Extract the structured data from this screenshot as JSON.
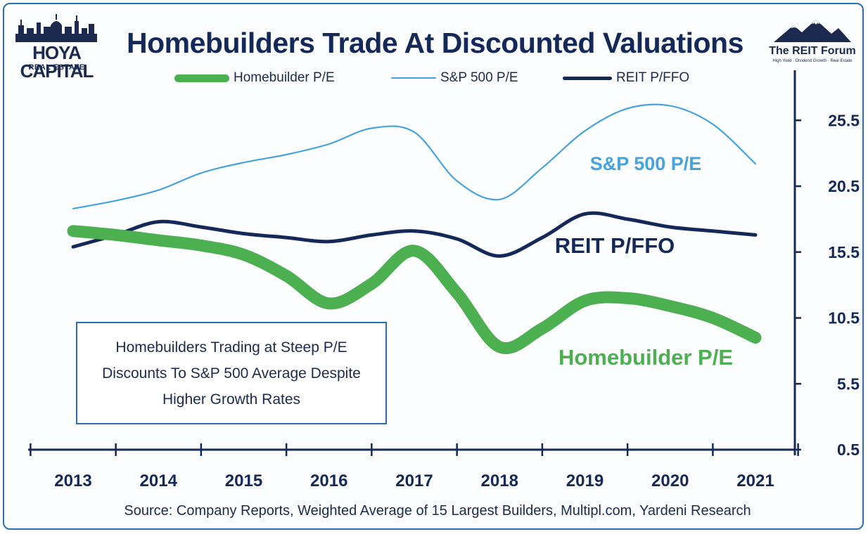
{
  "header": {
    "title": "Homebuilders Trade At Discounted Valuations",
    "logo_left_name": "HOYA CAPITAL",
    "logo_left_sub": "REAL ESTATE",
    "logo_right_name": "The REIT Forum",
    "logo_right_tagline": "High Yield · Dividend Growth · Real Estate"
  },
  "note": {
    "text": "Homebuilders Trading at Steep P/E Discounts To S&P 500 Average Despite Higher Growth Rates"
  },
  "source": "Source: Company Reports, Weighted Average of 15 Largest Builders, Multipl.com, Yardeni Research",
  "colors": {
    "homebuilder": "#4caf50",
    "sp500": "#47a3de",
    "reit": "#14295a",
    "axis": "#14295a",
    "frame": "#2a6fb5"
  },
  "chart_data": {
    "type": "line",
    "title": "Homebuilders Trade At Discounted Valuations",
    "x": [
      "2013",
      "2013.5",
      "2014",
      "2014.5",
      "2015",
      "2015.5",
      "2016",
      "2016.5",
      "2017",
      "2017.5",
      "2018",
      "2018.5",
      "2019",
      "2019.5",
      "2020",
      "2020.5",
      "2021"
    ],
    "xlabels": [
      "2013",
      "2014",
      "2015",
      "2016",
      "2017",
      "2018",
      "2019",
      "2020",
      "2021"
    ],
    "ylim": [
      0.5,
      28.5
    ],
    "yticks": [
      "0.5",
      "5.5",
      "10.5",
      "15.5",
      "20.5",
      "25.5"
    ],
    "y_axis_side": "right",
    "grid": false,
    "legend_position": "top",
    "series": [
      {
        "name": "Homebuilder P/E",
        "inline_label": "Homebuilder P/E",
        "values": [
          17.1,
          16.8,
          16.4,
          16.0,
          15.3,
          13.7,
          11.6,
          13.1,
          15.6,
          12.4,
          8.3,
          9.7,
          11.8,
          12.0,
          11.4,
          10.5,
          9.0
        ]
      },
      {
        "name": "S&P 500 P/E",
        "inline_label": "S&P 500 P/E",
        "values": [
          18.8,
          19.4,
          20.2,
          21.5,
          22.3,
          22.9,
          23.7,
          24.9,
          24.6,
          20.9,
          19.5,
          21.9,
          24.7,
          26.4,
          26.6,
          25.2,
          22.2
        ]
      },
      {
        "name": "REIT P/FFO",
        "inline_label": "REIT P/FFO",
        "values": [
          15.9,
          16.8,
          17.8,
          17.4,
          16.9,
          16.6,
          16.3,
          16.8,
          17.1,
          16.5,
          15.2,
          16.6,
          18.4,
          18.0,
          17.4,
          17.1,
          16.8
        ]
      }
    ]
  }
}
